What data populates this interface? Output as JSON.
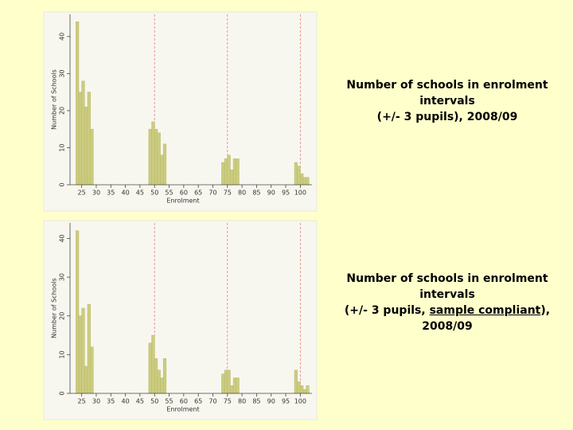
{
  "chart_data": [
    {
      "type": "bar",
      "color": "#cccc80",
      "ref_color": "#e08080",
      "x_label": "Enrolment",
      "y_label": "Number of Schools",
      "x": [
        23,
        24,
        25,
        26,
        27,
        28,
        48,
        49,
        50,
        51,
        52,
        53,
        73,
        74,
        75,
        76,
        77,
        78,
        98,
        99,
        100,
        101,
        102
      ],
      "values": [
        44,
        25,
        28,
        21,
        25,
        15,
        15,
        17,
        15,
        14,
        8,
        11,
        6,
        7,
        8,
        4,
        7,
        7,
        6,
        5,
        3,
        2,
        2
      ],
      "reference_lines": [
        50,
        75,
        100
      ],
      "xlim": [
        21,
        104
      ],
      "ylim": [
        0,
        46
      ],
      "xticks": [
        25,
        30,
        35,
        40,
        45,
        50,
        55,
        60,
        65,
        70,
        75,
        80,
        85,
        90,
        95,
        100
      ],
      "yticks": [
        0,
        10,
        20,
        30,
        40
      ]
    },
    {
      "type": "bar",
      "color": "#cccc80",
      "ref_color": "#e08080",
      "x_label": "Enrolment",
      "y_label": "Number of Schools",
      "x": [
        23,
        24,
        25,
        26,
        27,
        28,
        48,
        49,
        50,
        51,
        52,
        53,
        73,
        74,
        75,
        76,
        77,
        78,
        98,
        99,
        100,
        101,
        102
      ],
      "values": [
        42,
        20,
        22,
        7,
        23,
        12,
        13,
        15,
        9,
        6,
        4,
        9,
        5,
        6,
        6,
        2,
        4,
        4,
        6,
        3,
        2,
        1,
        2
      ],
      "reference_lines": [
        50,
        75,
        100
      ],
      "xlim": [
        21,
        104
      ],
      "ylim": [
        0,
        44
      ],
      "xticks": [
        25,
        30,
        35,
        40,
        45,
        50,
        55,
        60,
        65,
        70,
        75,
        80,
        85,
        90,
        95,
        100
      ],
      "yticks": [
        0,
        10,
        20,
        30,
        40
      ]
    }
  ],
  "captions": [
    [
      "Number of schools in enrolment",
      "intervals",
      "(+/- 3 pupils), 2008/09"
    ],
    [
      "Number of schools in enrolment",
      "intervals",
      "(+/- 3 pupils, ",
      "sample compliant",
      "),",
      "2008/09"
    ]
  ]
}
